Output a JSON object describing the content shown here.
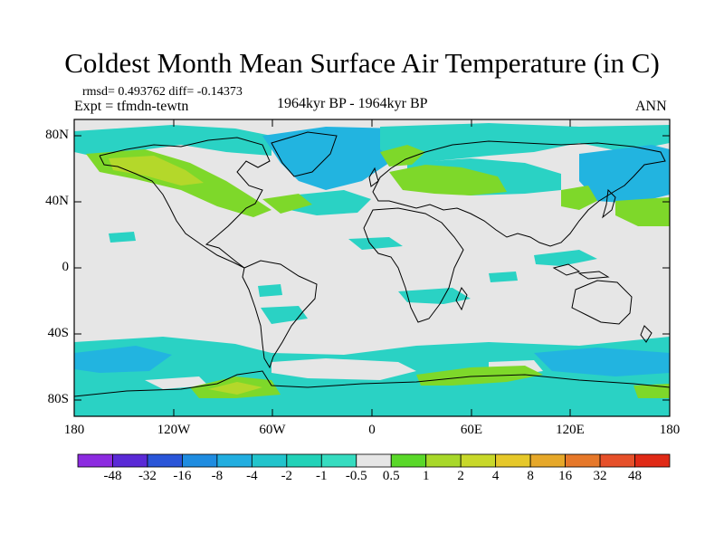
{
  "title": "Coldest Month Mean Surface Air Temperature (in C)",
  "stats": "rmsd= 0.493762  diff= -0.14373",
  "experiment": "Expt = tfmdn-tewtn",
  "period": "1964kyr BP - 1964kyr BP",
  "season": "ANN",
  "lat_labels": [
    "80N",
    "40N",
    "0",
    "40S",
    "80S"
  ],
  "lon_labels": [
    "180",
    "120W",
    "60W",
    "0",
    "60E",
    "120E",
    "180"
  ],
  "colorbar": {
    "labels": [
      "-48",
      "-32",
      "-16",
      "-8",
      "-4",
      "-2",
      "-1",
      "-0.5",
      "0.5",
      "1",
      "2",
      "4",
      "8",
      "16",
      "32",
      "48"
    ],
    "colors": [
      "#8c2be0",
      "#5a2ad6",
      "#2a55d8",
      "#1f8ce0",
      "#22aee0",
      "#22c4cc",
      "#22d2b8",
      "#36dcc0",
      "#e6e6e6",
      "#5ad82a",
      "#a8d82a",
      "#c8d82a",
      "#e6c82a",
      "#e6a82a",
      "#e6782a",
      "#e6502a",
      "#e02a16"
    ]
  },
  "colors": {
    "land_bg": "#e6e6e6",
    "cyan_anom": "#2ad2c4",
    "blue_anom": "#22b4e0",
    "green_anom": "#7ed82a",
    "yellow_anom": "#b4d82a"
  }
}
